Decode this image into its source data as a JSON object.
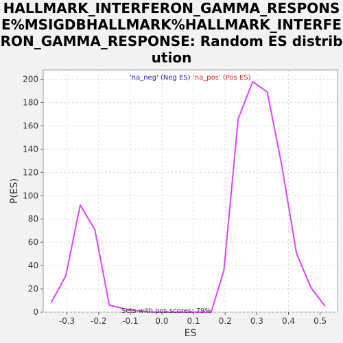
{
  "chart_data": {
    "type": "line",
    "title": "HALLMARK_INTERFERON_GAMMA_RESPONSE%MSIGDBHALLMARK%HALLMARK_INTERFERON_GAMMA_RESPONSE: Random ES distribution",
    "xlabel": "ES",
    "ylabel": "P(ES)",
    "xlim": [
      -0.375,
      0.555
    ],
    "ylim": [
      0,
      208
    ],
    "xticks": [
      -0.3,
      -0.2,
      -0.1,
      0.0,
      0.1,
      0.2,
      0.3,
      0.4,
      0.5
    ],
    "xtick_labels": [
      "-0.3",
      "-0.2",
      "-0.1",
      "0.0",
      "0.1",
      "0.2",
      "0.3",
      "0.4",
      "0.5"
    ],
    "yticks": [
      0,
      20,
      40,
      60,
      80,
      100,
      120,
      140,
      160,
      180,
      200
    ],
    "ytick_labels": [
      "0",
      "20",
      "40",
      "60",
      "80",
      "100",
      "120",
      "140",
      "160",
      "180",
      "200"
    ],
    "grid": true,
    "series": [
      {
        "color": "#e040fb",
        "x": [
          -0.35,
          -0.304,
          -0.258,
          -0.212,
          -0.166,
          -0.12,
          -0.074,
          -0.028,
          0.018,
          0.064,
          0.11,
          0.156,
          0.196,
          0.241,
          0.287,
          0.333,
          0.379,
          0.425,
          0.471,
          0.516
        ],
        "y": [
          8,
          31,
          92,
          71,
          6,
          3,
          1,
          0,
          0,
          0,
          0,
          0,
          36,
          166,
          198,
          189,
          126,
          51,
          21,
          5
        ]
      }
    ],
    "legend": {
      "placement": "top-center",
      "entries": [
        {
          "text": "'na_neg' (Neg ES)",
          "color": "#2020c0"
        },
        {
          "text": "'na_pos' (Pos ES)",
          "color": "#d02020"
        }
      ]
    },
    "annotation": "Sets with pos scores: 79%"
  }
}
